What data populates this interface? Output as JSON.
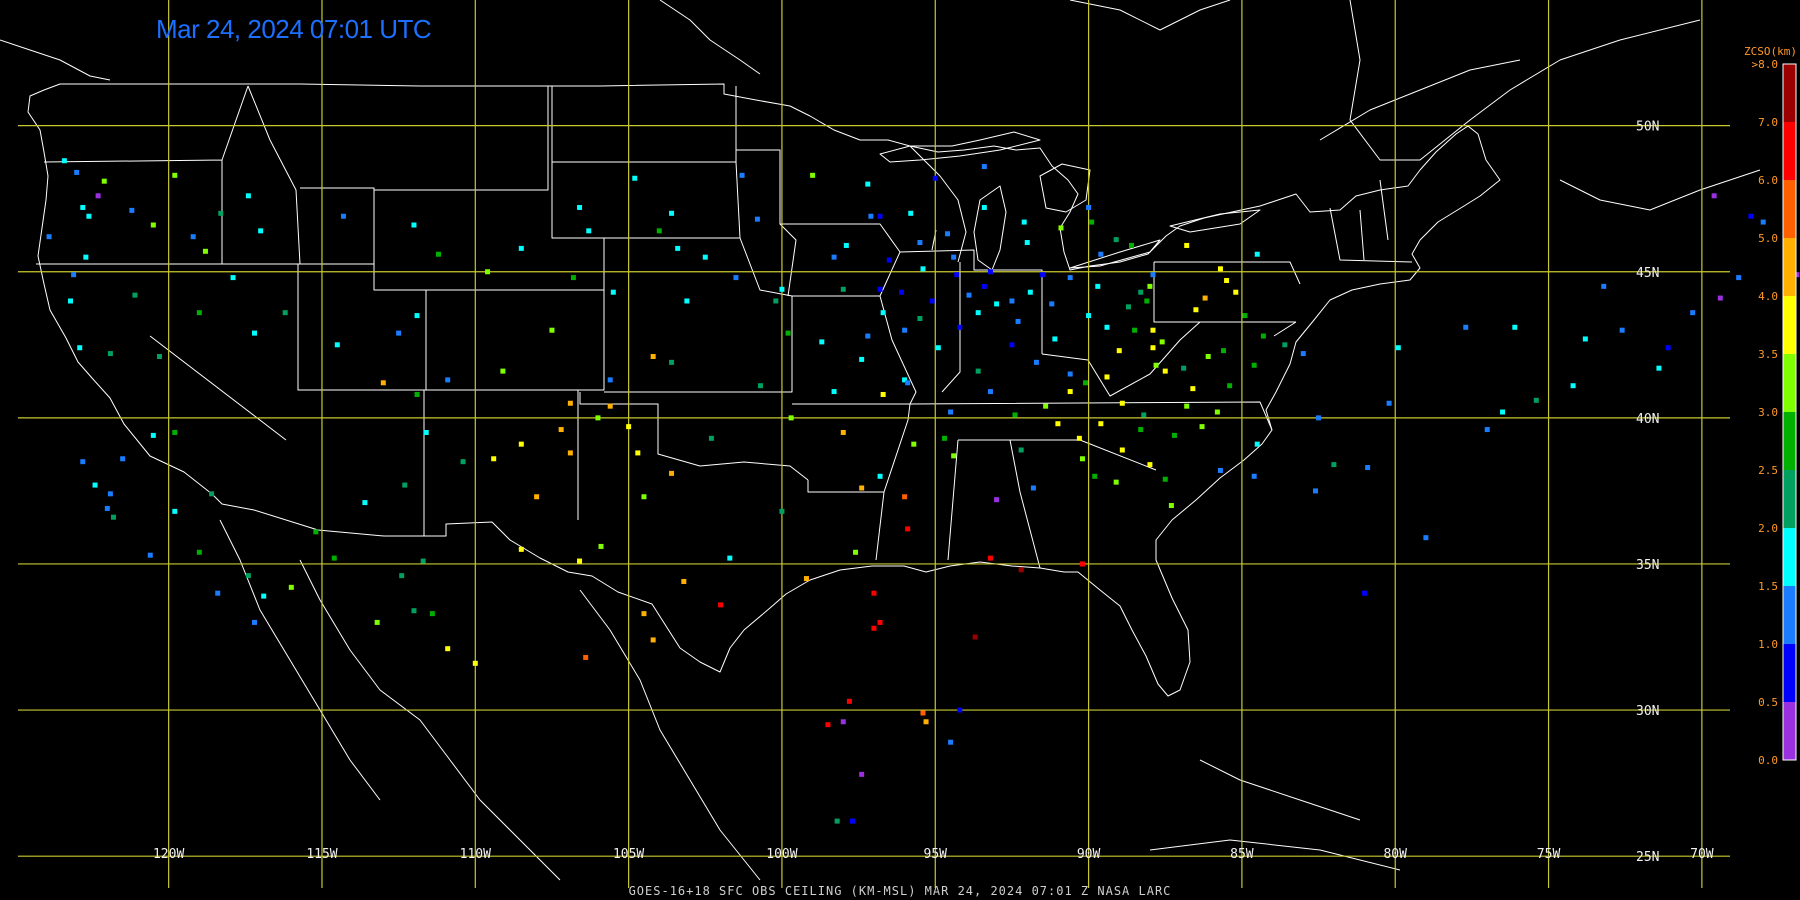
{
  "header": {
    "timestamp": "Mar 24, 2024 07:01 UTC"
  },
  "footer": {
    "caption": "GOES-16+18  SFC OBS CEILING (KM-MSL)   MAR 24, 2024 07:01 Z   NASA LARC"
  },
  "map": {
    "projection": "equirectangular",
    "lon_range": [
      -125.5,
      -66.8
    ],
    "lat_range": [
      23.5,
      54.3
    ],
    "grid": true,
    "grid_color": "#c8c830",
    "boundary_color": "#ffffff",
    "lon_lines": [
      -120,
      -115,
      -110,
      -105,
      -100,
      -95,
      -90,
      -85,
      -80,
      -75,
      -70
    ],
    "lon_labels": [
      "120W",
      "115W",
      "110W",
      "105W",
      "100W",
      "95W",
      "90W",
      "85W",
      "80W",
      "75W",
      "70W"
    ],
    "lat_lines": [
      50,
      45,
      40,
      35,
      30,
      25
    ],
    "lat_labels": [
      "50N",
      "45N",
      "40N",
      "35N",
      "30N",
      "25N"
    ]
  },
  "colorbar": {
    "title": "ZCSO(km)",
    "top_label": ">8.0",
    "tick_labels": [
      "7.0",
      "6.0",
      "5.0",
      "4.0",
      "3.5",
      "3.0",
      "2.5",
      "2.0",
      "1.5",
      "1.0",
      "0.5",
      "0.0"
    ],
    "bins": [
      {
        "min": 0.0,
        "color": "#9b30e0"
      },
      {
        "min": 0.5,
        "color": "#0000ff"
      },
      {
        "min": 1.0,
        "color": "#1a7cff"
      },
      {
        "min": 1.5,
        "color": "#00ffff"
      },
      {
        "min": 2.0,
        "color": "#00a060"
      },
      {
        "min": 2.5,
        "color": "#00b000"
      },
      {
        "min": 3.0,
        "color": "#80ff00"
      },
      {
        "min": 3.5,
        "color": "#ffff00"
      },
      {
        "min": 4.0,
        "color": "#ffb000"
      },
      {
        "min": 5.0,
        "color": "#ff6000"
      },
      {
        "min": 6.0,
        "color": "#ff0000"
      },
      {
        "min": 7.0,
        "color": "#9a0000"
      }
    ]
  },
  "observations": [
    [
      -123.0,
      48.4,
      1.2
    ],
    [
      -122.3,
      47.6,
      0.3
    ],
    [
      -122.8,
      47.2,
      1.5
    ],
    [
      -122.1,
      48.1,
      3.1
    ],
    [
      -123.4,
      48.8,
      1.6
    ],
    [
      -122.6,
      46.9,
      1.8
    ],
    [
      -123.9,
      46.2,
      1.0
    ],
    [
      -121.2,
      47.1,
      1.2
    ],
    [
      -120.5,
      46.6,
      3.2
    ],
    [
      -119.8,
      48.3,
      3.4
    ],
    [
      -117.4,
      47.6,
      1.8
    ],
    [
      -117.0,
      46.4,
      1.5
    ],
    [
      -118.3,
      47.0,
      2.2
    ],
    [
      -119.2,
      46.2,
      1.4
    ],
    [
      -122.7,
      45.5,
      1.6
    ],
    [
      -123.1,
      44.9,
      1.2
    ],
    [
      -123.2,
      44.0,
      1.8
    ],
    [
      -122.9,
      42.4,
      1.5
    ],
    [
      -121.1,
      44.2,
      2.3
    ],
    [
      -119.0,
      43.6,
      2.9
    ],
    [
      -117.9,
      44.8,
      1.7
    ],
    [
      -118.8,
      45.7,
      3.3
    ],
    [
      -121.9,
      42.2,
      2.0
    ],
    [
      -120.3,
      42.1,
      2.0
    ],
    [
      -117.2,
      42.9,
      1.6
    ],
    [
      -116.2,
      43.6,
      2.0
    ],
    [
      -114.5,
      42.5,
      1.5
    ],
    [
      -112.5,
      42.9,
      1.2
    ],
    [
      -111.9,
      43.5,
      1.8
    ],
    [
      -114.3,
      46.9,
      1.4
    ],
    [
      -112.0,
      46.6,
      1.6
    ],
    [
      -111.2,
      45.6,
      2.7
    ],
    [
      -108.5,
      45.8,
      1.8
    ],
    [
      -106.6,
      47.2,
      1.6
    ],
    [
      -104.8,
      48.2,
      1.8
    ],
    [
      -106.3,
      46.4,
      1.6
    ],
    [
      -109.6,
      45.0,
      3.3
    ],
    [
      -105.5,
      44.3,
      1.5
    ],
    [
      -106.8,
      44.8,
      2.6
    ],
    [
      -107.5,
      43.0,
      3.4
    ],
    [
      -104.2,
      42.1,
      4.0
    ],
    [
      -105.6,
      41.3,
      1.2
    ],
    [
      -109.1,
      41.6,
      3.0
    ],
    [
      -110.9,
      41.3,
      1.3
    ],
    [
      -111.9,
      40.8,
      2.5
    ],
    [
      -113.0,
      41.2,
      4.3
    ],
    [
      -111.6,
      39.5,
      1.6
    ],
    [
      -110.4,
      38.5,
      2.4
    ],
    [
      -112.3,
      37.7,
      2.4
    ],
    [
      -109.4,
      38.6,
      3.6
    ],
    [
      -108.5,
      39.1,
      3.5
    ],
    [
      -107.2,
      39.6,
      4.8
    ],
    [
      -106.9,
      38.8,
      4.3
    ],
    [
      -105.0,
      39.7,
      3.7
    ],
    [
      -104.7,
      38.8,
      3.6
    ],
    [
      -104.5,
      37.3,
      3.4
    ],
    [
      -103.6,
      38.1,
      4.2
    ],
    [
      -102.3,
      39.3,
      2.0
    ],
    [
      -108.0,
      37.3,
      4.2
    ],
    [
      -106.9,
      40.5,
      4.6
    ],
    [
      -105.6,
      40.4,
      4.8
    ],
    [
      -106.0,
      40.0,
      3.1
    ],
    [
      -122.4,
      37.7,
      1.6
    ],
    [
      -121.9,
      37.4,
      1.2
    ],
    [
      -122.0,
      36.9,
      1.2
    ],
    [
      -121.8,
      36.6,
      2.0
    ],
    [
      -121.5,
      38.6,
      1.1
    ],
    [
      -122.8,
      38.5,
      1.2
    ],
    [
      -120.6,
      35.3,
      1.4
    ],
    [
      -119.8,
      36.8,
      1.8
    ],
    [
      -119.0,
      35.4,
      2.8
    ],
    [
      -118.4,
      34.0,
      1.4
    ],
    [
      -117.2,
      33.0,
      1.0
    ],
    [
      -116.9,
      33.9,
      1.9
    ],
    [
      -117.4,
      34.6,
      2.3
    ],
    [
      -116.0,
      34.2,
      3.0
    ],
    [
      -120.5,
      39.4,
      1.8
    ],
    [
      -119.8,
      39.5,
      2.7
    ],
    [
      -118.6,
      37.4,
      2.2
    ],
    [
      -115.2,
      36.1,
      2.8
    ],
    [
      -114.6,
      35.2,
      2.6
    ],
    [
      -113.6,
      37.1,
      1.8
    ],
    [
      -112.0,
      33.4,
      2.3
    ],
    [
      -111.4,
      33.3,
      2.7
    ],
    [
      -112.4,
      34.6,
      2.3
    ],
    [
      -110.9,
      32.1,
      3.5
    ],
    [
      -111.7,
      35.1,
      2.2
    ],
    [
      -110.0,
      31.6,
      3.6
    ],
    [
      -113.2,
      33.0,
      3.4
    ],
    [
      -108.5,
      35.5,
      3.6
    ],
    [
      -106.6,
      35.1,
      3.5
    ],
    [
      -105.9,
      35.6,
      3.4
    ],
    [
      -104.5,
      33.3,
      4.0
    ],
    [
      -103.2,
      34.4,
      4.3
    ],
    [
      -106.4,
      31.8,
      5.5
    ],
    [
      -104.2,
      32.4,
      4.3
    ],
    [
      -101.7,
      35.2,
      1.6
    ],
    [
      -100.0,
      36.8,
      2.0
    ],
    [
      -97.4,
      37.6,
      4.6
    ],
    [
      -96.0,
      37.3,
      5.0
    ],
    [
      -97.6,
      35.4,
      3.4
    ],
    [
      -95.9,
      36.2,
      6.5
    ],
    [
      -97.0,
      34.0,
      6.0
    ],
    [
      -99.2,
      34.5,
      4.3
    ],
    [
      -102.0,
      33.6,
      6.6
    ],
    [
      -97.0,
      32.8,
      6.6
    ],
    [
      -96.8,
      33.0,
      6.7
    ],
    [
      -97.8,
      30.3,
      6.4
    ],
    [
      -98.5,
      29.5,
      6.8
    ],
    [
      -97.4,
      27.8,
      0.4
    ],
    [
      -95.4,
      29.9,
      5.4
    ],
    [
      -95.3,
      29.6,
      4.5
    ],
    [
      -94.2,
      30.0,
      0.9
    ],
    [
      -97.7,
      26.2,
      0.9
    ],
    [
      -98.2,
      26.2,
      2.3
    ],
    [
      -98.0,
      29.6,
      0.2
    ],
    [
      -94.5,
      28.9,
      1.4
    ],
    [
      -93.2,
      35.2,
      6.5
    ],
    [
      -90.2,
      35.0,
      6.8
    ],
    [
      -92.2,
      34.8,
      7.4
    ],
    [
      -93.7,
      32.5,
      7.5
    ],
    [
      -100.0,
      44.4,
      1.5
    ],
    [
      -98.3,
      45.5,
      1.2
    ],
    [
      -96.7,
      43.6,
      1.6
    ],
    [
      -103.1,
      44.0,
      1.6
    ],
    [
      -101.5,
      44.8,
      1.2
    ],
    [
      -98.0,
      44.4,
      2.2
    ],
    [
      -97.1,
      46.9,
      1.2
    ],
    [
      -96.8,
      46.9,
      0.8
    ],
    [
      -100.8,
      46.8,
      1.0
    ],
    [
      -101.3,
      48.3,
      1.2
    ],
    [
      -97.2,
      48.0,
      1.5
    ],
    [
      -99.0,
      48.3,
      3.0
    ],
    [
      -103.6,
      47.0,
      1.8
    ],
    [
      -97.4,
      42.0,
      1.8
    ],
    [
      -96.0,
      41.3,
      1.6
    ],
    [
      -98.3,
      40.9,
      1.5
    ],
    [
      -100.7,
      41.1,
      2.2
    ],
    [
      -103.6,
      41.9,
      2.2
    ],
    [
      -96.7,
      40.8,
      3.5
    ],
    [
      -99.7,
      40.0,
      3.3
    ],
    [
      -98.0,
      39.5,
      4.0
    ],
    [
      -95.7,
      39.1,
      3.4
    ],
    [
      -94.7,
      39.3,
      2.7
    ],
    [
      -96.8,
      38.0,
      1.8
    ],
    [
      -94.4,
      38.7,
      3.0
    ],
    [
      -93.2,
      45.0,
      0.8
    ],
    [
      -93.4,
      44.5,
      0.7
    ],
    [
      -92.5,
      44.0,
      1.1
    ],
    [
      -94.4,
      45.5,
      1.2
    ],
    [
      -95.4,
      45.1,
      1.6
    ],
    [
      -92.1,
      46.7,
      1.5
    ],
    [
      -93.4,
      47.2,
      1.5
    ],
    [
      -94.6,
      46.3,
      1.3
    ],
    [
      -91.2,
      43.9,
      1.0
    ],
    [
      -89.4,
      43.1,
      1.8
    ],
    [
      -88.0,
      44.5,
      3.2
    ],
    [
      -87.9,
      43.0,
      3.6
    ],
    [
      -90.6,
      44.8,
      1.2
    ],
    [
      -91.5,
      44.9,
      0.9
    ],
    [
      -89.6,
      45.6,
      1.3
    ],
    [
      -89.9,
      46.7,
      2.6
    ],
    [
      -88.3,
      44.3,
      2.3
    ],
    [
      -89.0,
      42.3,
      3.5
    ],
    [
      -87.8,
      41.8,
      3.4
    ],
    [
      -87.9,
      42.4,
      3.6
    ],
    [
      -88.9,
      40.5,
      3.8
    ],
    [
      -89.6,
      39.8,
      3.5
    ],
    [
      -90.2,
      38.6,
      3.3
    ],
    [
      -87.5,
      41.6,
      3.7
    ],
    [
      -86.3,
      39.7,
      3.0
    ],
    [
      -85.4,
      41.1,
      2.8
    ],
    [
      -87.5,
      37.9,
      2.9
    ],
    [
      -86.8,
      40.4,
      3.2
    ],
    [
      -85.6,
      42.3,
      2.7
    ],
    [
      -85.5,
      44.7,
      3.7
    ],
    [
      -86.2,
      44.1,
      4.1
    ],
    [
      -84.5,
      45.6,
      1.6
    ],
    [
      -84.3,
      42.8,
      2.6
    ],
    [
      -83.6,
      42.5,
      2.4
    ],
    [
      -84.6,
      41.8,
      2.5
    ],
    [
      -92.5,
      42.5,
      0.9
    ],
    [
      -91.7,
      41.9,
      1.2
    ],
    [
      -90.6,
      41.5,
      1.3
    ],
    [
      -93.6,
      41.6,
      2.2
    ],
    [
      -94.9,
      42.4,
      1.7
    ],
    [
      -95.9,
      41.2,
      1.3
    ],
    [
      -92.4,
      40.1,
      2.9
    ],
    [
      -93.2,
      40.9,
      1.0
    ],
    [
      -94.5,
      40.2,
      1.4
    ],
    [
      -91.4,
      40.4,
      3.0
    ],
    [
      -90.1,
      41.2,
      2.5
    ],
    [
      -91.1,
      42.7,
      1.6
    ],
    [
      -94.2,
      43.1,
      0.6
    ],
    [
      -95.5,
      43.4,
      2.0
    ],
    [
      -96.1,
      44.3,
      0.8
    ],
    [
      -95.1,
      44.0,
      0.9
    ],
    [
      -93.6,
      43.6,
      1.5
    ],
    [
      -90.0,
      43.5,
      1.6
    ],
    [
      -88.7,
      43.8,
      2.4
    ],
    [
      -87.9,
      44.9,
      1.3
    ],
    [
      -88.6,
      45.9,
      2.5
    ],
    [
      -90.9,
      46.5,
      3.2
    ],
    [
      -92.0,
      46.0,
      1.7
    ],
    [
      -95.8,
      47.0,
      1.5
    ],
    [
      -95.0,
      48.2,
      0.8
    ],
    [
      -93.4,
      48.6,
      1.4
    ],
    [
      -90.3,
      39.3,
      3.6
    ],
    [
      -88.2,
      40.1,
      2.4
    ],
    [
      -88.0,
      38.4,
      3.5
    ],
    [
      -89.1,
      37.8,
      3.3
    ],
    [
      -92.2,
      38.9,
      2.0
    ],
    [
      -93.0,
      37.2,
      0.3
    ],
    [
      -91.8,
      37.6,
      1.4
    ],
    [
      -84.5,
      39.1,
      1.5
    ],
    [
      -85.7,
      38.2,
      1.2
    ],
    [
      -84.6,
      38.0,
      1.4
    ],
    [
      -82.6,
      37.5,
      1.3
    ],
    [
      -82.0,
      38.4,
      2.1
    ],
    [
      -83.0,
      42.2,
      1.3
    ],
    [
      -82.5,
      40.0,
      1.4
    ],
    [
      -80.2,
      40.5,
      1.3
    ],
    [
      -77.0,
      39.6,
      1.2
    ],
    [
      -76.5,
      40.2,
      1.6
    ],
    [
      -75.4,
      40.6,
      2.0
    ],
    [
      -74.2,
      41.1,
      1.5
    ],
    [
      -79.9,
      42.4,
      1.5
    ],
    [
      -77.7,
      43.1,
      1.2
    ],
    [
      -76.1,
      43.1,
      1.7
    ],
    [
      -73.8,
      42.7,
      1.6
    ],
    [
      -73.2,
      44.5,
      1.3
    ],
    [
      -72.6,
      43.0,
      1.4
    ],
    [
      -71.1,
      42.4,
      0.8
    ],
    [
      -71.4,
      41.7,
      1.5
    ],
    [
      -70.3,
      43.6,
      1.2
    ],
    [
      -69.4,
      44.1,
      0.4
    ],
    [
      -68.8,
      44.8,
      1.1
    ],
    [
      -68.0,
      46.7,
      1.2
    ],
    [
      -68.4,
      46.9,
      0.6
    ],
    [
      -69.6,
      47.6,
      0.2
    ],
    [
      -67.0,
      45.2,
      0.2
    ],
    [
      -66.9,
      44.9,
      0.2
    ],
    [
      -81.0,
      34.0,
      0.8
    ],
    [
      -79.0,
      35.9,
      1.3
    ],
    [
      -80.9,
      38.3,
      1.3
    ],
    [
      -95.5,
      46.0,
      1.4
    ],
    [
      -96.5,
      45.4,
      0.6
    ],
    [
      -96.8,
      44.4,
      0.8
    ],
    [
      -97.9,
      45.9,
      1.6
    ],
    [
      -96.0,
      43.0,
      1.0
    ],
    [
      -97.2,
      42.8,
      1.3
    ],
    [
      -98.7,
      42.6,
      1.5
    ],
    [
      -99.8,
      42.9,
      2.7
    ],
    [
      -100.2,
      44.0,
      2.2
    ],
    [
      -102.5,
      45.5,
      1.5
    ],
    [
      -103.4,
      45.8,
      1.6
    ],
    [
      -104.0,
      46.4,
      2.5
    ],
    [
      -94.3,
      44.9,
      0.7
    ],
    [
      -93.9,
      44.2,
      1.1
    ],
    [
      -93.0,
      43.9,
      1.7
    ],
    [
      -92.3,
      43.3,
      1.2
    ],
    [
      -91.9,
      44.3,
      1.9
    ],
    [
      -89.7,
      44.5,
      1.5
    ],
    [
      -88.5,
      43.0,
      2.7
    ],
    [
      -87.6,
      42.6,
      3.4
    ],
    [
      -86.5,
      43.7,
      3.9
    ],
    [
      -86.8,
      45.9,
      3.5
    ],
    [
      -85.2,
      44.3,
      3.8
    ],
    [
      -86.9,
      41.7,
      2.2
    ],
    [
      -87.2,
      39.4,
      2.7
    ],
    [
      -86.6,
      41.0,
      3.5
    ],
    [
      -85.8,
      40.2,
      3.2
    ],
    [
      -86.1,
      42.1,
      3.3
    ],
    [
      -84.9,
      43.5,
      2.6
    ],
    [
      -85.7,
      45.1,
      3.6
    ],
    [
      -88.3,
      39.6,
      2.8
    ],
    [
      -89.4,
      41.4,
      3.7
    ],
    [
      -90.6,
      40.9,
      3.5
    ],
    [
      -89.8,
      38.0,
      2.5
    ],
    [
      -88.9,
      38.9,
      3.7
    ],
    [
      -91.0,
      39.8,
      3.9
    ],
    [
      -87.3,
      37.0,
      3.4
    ],
    [
      -88.1,
      44.0,
      2.6
    ],
    [
      -89.1,
      46.1,
      2.4
    ],
    [
      -90.0,
      47.2,
      1.4
    ]
  ]
}
